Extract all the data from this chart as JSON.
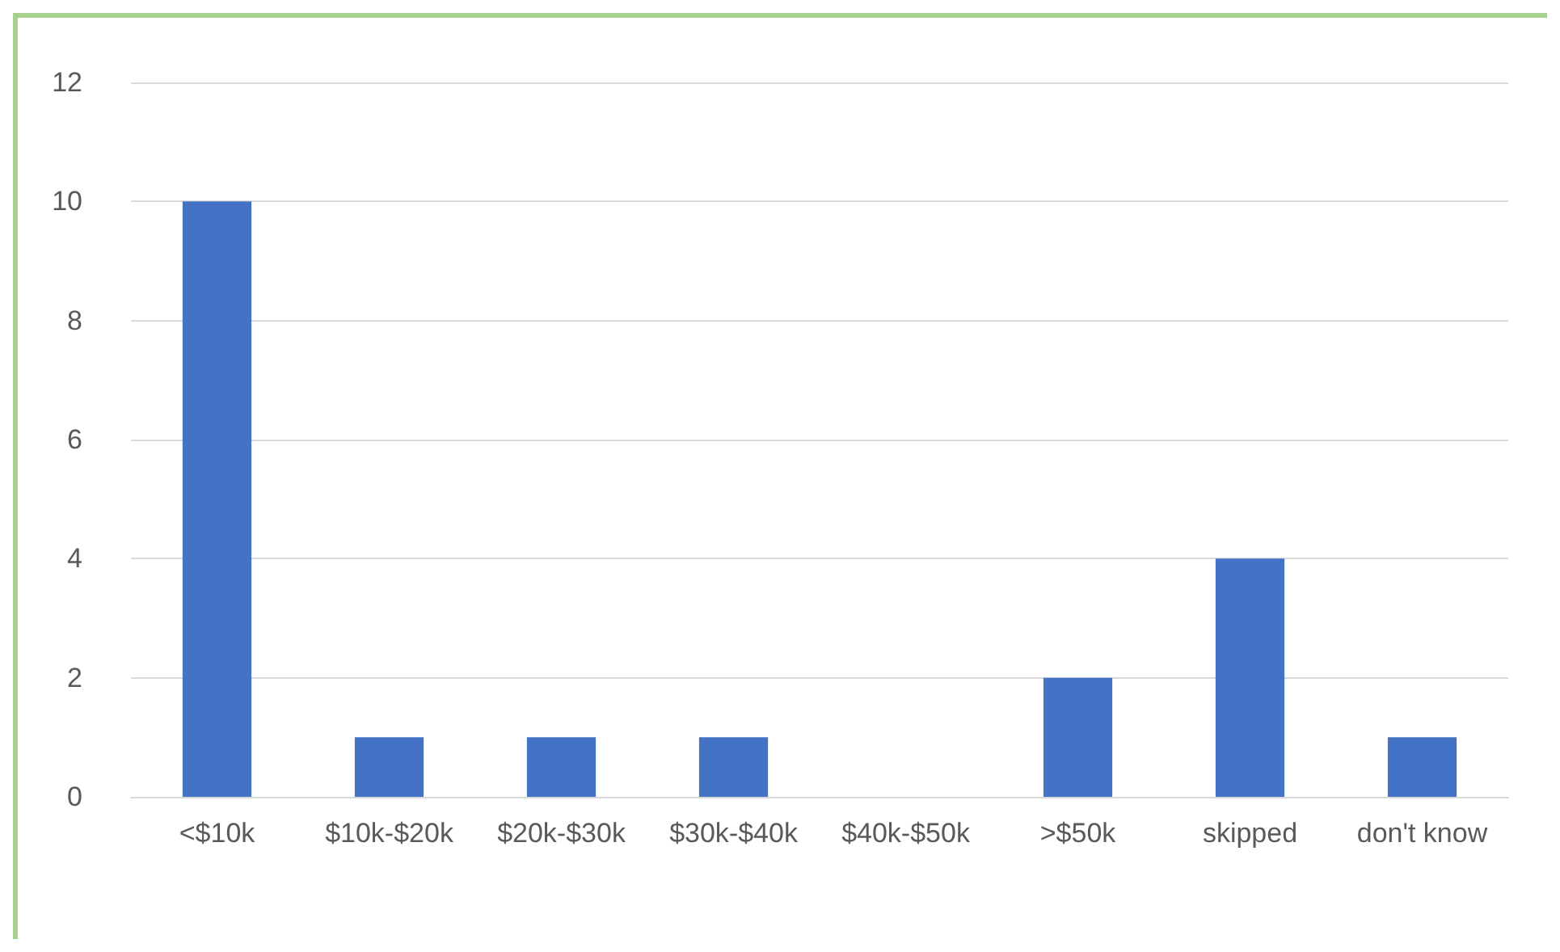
{
  "chart_data": {
    "type": "bar",
    "categories": [
      "<$10k",
      "$10k-$20k",
      "$20k-$30k",
      "$30k-$40k",
      "$40k-$50k",
      ">$50k",
      "skipped",
      "don't know"
    ],
    "values": [
      10,
      1,
      1,
      1,
      0,
      2,
      4,
      1
    ],
    "color": "#4472c4",
    "ylim": [
      0,
      12
    ],
    "yticks": [
      0,
      2,
      4,
      6,
      8,
      10,
      12
    ],
    "grid": "y"
  }
}
